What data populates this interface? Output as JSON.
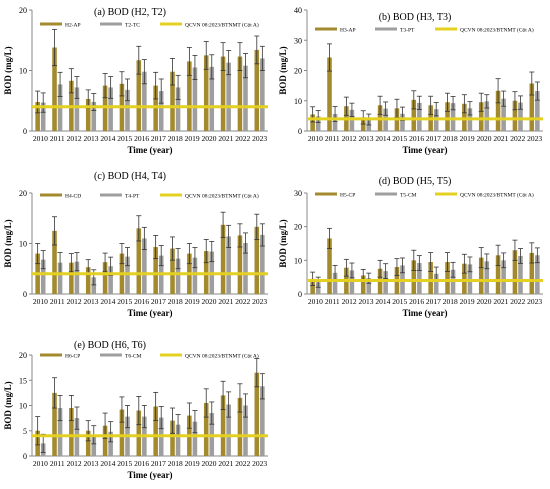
{
  "colors": {
    "series_a": "#A38A2E",
    "series_b": "#9E9E9E",
    "standard": "#E3D021",
    "error": "#333333"
  },
  "chart_data": [
    {
      "type": "bar",
      "title": "(a) BOD (H2, T2)",
      "ylabel": "BOD (mg/L)",
      "xlabel": "Time (year)",
      "ylim": [
        0,
        20
      ],
      "yticks": [
        0,
        10,
        20
      ],
      "categories": [
        "2010",
        "2011",
        "2012",
        "2013",
        "2014",
        "2015",
        "2016",
        "2017",
        "2018",
        "2019",
        "2020",
        "2021",
        "2022",
        "2023"
      ],
      "series": [
        {
          "name": "H2-AP",
          "values": [
            4.8,
            13.8,
            8.3,
            5.3,
            7.5,
            7.8,
            11.7,
            7.5,
            9.8,
            11.5,
            12.5,
            12.3,
            12.3,
            13.4
          ],
          "errors": [
            1.8,
            3.0,
            2.0,
            1.5,
            2.0,
            2.0,
            2.3,
            2.2,
            2.2,
            2.3,
            2.3,
            2.3,
            2.3,
            2.3
          ]
        },
        {
          "name": "T2-TC",
          "values": [
            4.7,
            7.7,
            7.2,
            4.8,
            7.2,
            6.8,
            9.8,
            6.6,
            7.2,
            10.5,
            10.6,
            11.3,
            10.8,
            12.0
          ],
          "errors": [
            1.6,
            2.0,
            1.8,
            1.4,
            1.8,
            1.8,
            2.0,
            2.0,
            2.0,
            2.0,
            2.0,
            2.0,
            2.0,
            2.0
          ]
        }
      ],
      "standard": {
        "name": "QCVN 08:2023/BTNMT (Cột A)",
        "value": 4
      },
      "legend": "top"
    },
    {
      "type": "bar",
      "title": "(b) BOD (H3, T3)",
      "ylabel": "BOD (mg/L)",
      "xlabel": "Time (year)",
      "ylim": [
        0,
        40
      ],
      "yticks": [
        0,
        10,
        20,
        30,
        40
      ],
      "categories": [
        "2010",
        "2011",
        "2012",
        "2013",
        "2014",
        "2015",
        "2016",
        "2017",
        "2018",
        "2019",
        "2020",
        "2021",
        "2022",
        "2023"
      ],
      "series": [
        {
          "name": "H3-AP",
          "values": [
            5.5,
            24.3,
            8.2,
            4.5,
            8.5,
            7.5,
            10.3,
            8.5,
            9.5,
            9.0,
            9.5,
            13.3,
            10.0,
            15.7
          ],
          "errors": [
            2.5,
            4.5,
            3.0,
            2.2,
            3.0,
            3.0,
            3.0,
            3.0,
            3.0,
            3.0,
            3.0,
            4.0,
            3.0,
            3.8
          ]
        },
        {
          "name": "T3-PT",
          "values": [
            4.8,
            5.6,
            7.0,
            3.8,
            7.4,
            5.7,
            9.3,
            7.2,
            9.2,
            7.5,
            9.8,
            10.7,
            9.4,
            13.2
          ],
          "errors": [
            2.0,
            2.5,
            2.2,
            1.8,
            2.2,
            2.2,
            2.2,
            2.2,
            2.2,
            2.2,
            2.2,
            2.5,
            2.2,
            3.0
          ]
        }
      ],
      "standard": {
        "name": "QCVN 08:2023/BTNMT (Cột A)",
        "value": 4
      },
      "legend": "top"
    },
    {
      "type": "bar",
      "title": "(c) BOD (H4, T4)",
      "ylabel": "BOD (mg/L)",
      "xlabel": "Time (year)",
      "ylim": [
        0,
        20
      ],
      "yticks": [
        0,
        10,
        20
      ],
      "categories": [
        "2010",
        "2011",
        "2012",
        "2013",
        "2014",
        "2015",
        "2016",
        "2017",
        "2018",
        "2019",
        "2020",
        "2021",
        "2022",
        "2023"
      ],
      "series": [
        {
          "name": "H4-CD",
          "values": [
            8.0,
            12.5,
            6.2,
            5.3,
            6.3,
            8.0,
            13.0,
            9.3,
            9.0,
            8.0,
            8.5,
            13.7,
            11.6,
            13.3
          ],
          "errors": [
            2.0,
            2.8,
            1.8,
            1.5,
            1.8,
            2.0,
            2.5,
            2.3,
            2.3,
            2.0,
            2.3,
            2.5,
            2.3,
            2.5
          ]
        },
        {
          "name": "T4-PT",
          "values": [
            6.8,
            6.2,
            6.4,
            3.3,
            5.5,
            7.4,
            11.0,
            7.6,
            7.0,
            7.2,
            8.4,
            11.4,
            10.1,
            11.7
          ],
          "errors": [
            1.8,
            2.0,
            1.8,
            1.5,
            1.8,
            1.8,
            2.2,
            2.0,
            2.0,
            2.0,
            2.0,
            2.2,
            2.0,
            2.2
          ]
        }
      ],
      "standard": {
        "name": "QCVN 08:2023/BTNMT (Cột A)",
        "value": 4
      },
      "legend": "top"
    },
    {
      "type": "bar",
      "title": "(d) BOD (H5, T5)",
      "ylabel": "BOD (mg/L)",
      "xlabel": "Time (year)",
      "ylim": [
        0,
        30
      ],
      "yticks": [
        0,
        10,
        20,
        30
      ],
      "categories": [
        "2010",
        "2011",
        "2012",
        "2013",
        "2014",
        "2015",
        "2016",
        "2017",
        "2018",
        "2019",
        "2020",
        "2021",
        "2022",
        "2023"
      ],
      "series": [
        {
          "name": "H5-CP",
          "values": [
            4.5,
            16.5,
            7.8,
            5.5,
            7.5,
            8.0,
            10.0,
            9.5,
            9.5,
            9.0,
            10.8,
            11.5,
            13.0,
            12.2
          ],
          "errors": [
            2.0,
            3.0,
            2.5,
            1.8,
            2.5,
            2.5,
            3.0,
            2.8,
            2.8,
            2.8,
            3.0,
            3.0,
            3.0,
            3.0
          ]
        },
        {
          "name": "T5-CM",
          "values": [
            3.5,
            6.3,
            7.0,
            4.7,
            6.8,
            8.5,
            9.2,
            6.0,
            7.2,
            8.8,
            9.7,
            10.0,
            11.3,
            11.5
          ],
          "errors": [
            1.5,
            2.2,
            2.2,
            1.5,
            2.2,
            2.2,
            2.2,
            2.0,
            2.2,
            2.2,
            2.2,
            2.2,
            2.2,
            2.2
          ]
        }
      ],
      "standard": {
        "name": "QCVN 08:2023/BTNMT (Cột A)",
        "value": 4
      },
      "legend": "top"
    },
    {
      "type": "bar",
      "title": "(e) BOD (H6, T6)",
      "ylabel": "BOD (mg/L)",
      "xlabel": "Time (year)",
      "ylim": [
        0,
        20
      ],
      "yticks": [
        0,
        5,
        10,
        15,
        20
      ],
      "categories": [
        "2010",
        "2011",
        "2012",
        "2013",
        "2014",
        "2015",
        "2016",
        "2017",
        "2018",
        "2019",
        "2020",
        "2021",
        "2022",
        "2023"
      ],
      "series": [
        {
          "name": "H6-CP",
          "values": [
            5.0,
            12.5,
            9.5,
            5.0,
            6.0,
            9.2,
            9.0,
            9.8,
            7.0,
            8.0,
            10.5,
            12.0,
            11.5,
            16.5
          ],
          "errors": [
            2.8,
            3.0,
            2.5,
            2.0,
            2.5,
            2.5,
            2.8,
            2.8,
            2.5,
            2.5,
            2.8,
            2.8,
            2.8,
            2.8
          ]
        },
        {
          "name": "T6-CM",
          "values": [
            2.5,
            9.5,
            7.5,
            4.2,
            4.8,
            7.8,
            7.8,
            7.6,
            6.2,
            6.8,
            8.5,
            10.2,
            10.0,
            13.8
          ],
          "errors": [
            1.8,
            2.5,
            2.2,
            1.8,
            2.0,
            2.2,
            2.2,
            2.2,
            2.0,
            2.2,
            2.2,
            2.5,
            2.3,
            2.5
          ]
        }
      ],
      "standard": {
        "name": "QCVN 08:2023/BTNMT (Cột A)",
        "value": 4
      },
      "legend": "top"
    }
  ]
}
